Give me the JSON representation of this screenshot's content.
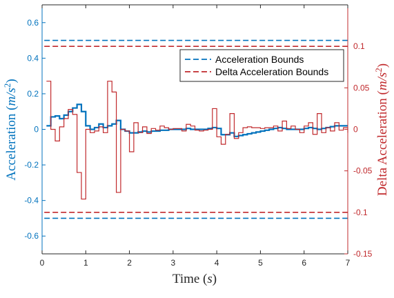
{
  "chart_data": {
    "type": "line",
    "xlabel": "Time (s)",
    "xlim": [
      0,
      7
    ],
    "x_ticks": [
      "0",
      "1",
      "2",
      "3",
      "4",
      "5",
      "6",
      "7"
    ],
    "ylabel_left": "Acceleration (m/s²)",
    "ylim_left": [
      -0.7,
      0.7
    ],
    "y_ticks_left": [
      "0.6",
      "0.4",
      "0.2",
      "0",
      "-0.2",
      "-0.4",
      "-0.6"
    ],
    "ylabel_right": "Delta Acceleration (m/s²)",
    "ylim_right": [
      -0.15,
      0.15
    ],
    "y_ticks_right": [
      "0.1",
      "0.05",
      "0",
      "-0.05",
      "-0.1",
      "-0.15"
    ],
    "colors": {
      "left": "#0072BD",
      "right": "#C0282B"
    },
    "legend": {
      "position": "top-right",
      "entries": [
        "Acceleration Bounds",
        "Delta Acceleration Bounds"
      ]
    },
    "series": [
      {
        "name": "Acceleration Bounds",
        "axis": "left",
        "style": "dashed",
        "color": "#0072BD",
        "values": [
          0.5,
          -0.5
        ]
      },
      {
        "name": "Delta Acceleration Bounds",
        "axis": "right",
        "style": "dashed",
        "color": "#C0282B",
        "values": [
          0.1,
          -0.1
        ]
      },
      {
        "name": "",
        "axis": "left",
        "style": "stairs",
        "color": "#0072BD",
        "x": [
          0.1,
          0.2,
          0.3,
          0.4,
          0.5,
          0.6,
          0.7,
          0.8,
          0.9,
          1.0,
          1.1,
          1.2,
          1.3,
          1.4,
          1.5,
          1.6,
          1.7,
          1.8,
          1.9,
          2.0,
          2.1,
          2.2,
          2.3,
          2.4,
          2.5,
          2.6,
          2.7,
          2.8,
          2.9,
          3.0,
          3.1,
          3.2,
          3.3,
          3.4,
          3.5,
          3.6,
          3.7,
          3.8,
          3.9,
          4.0,
          4.1,
          4.2,
          4.3,
          4.4,
          4.5,
          4.6,
          4.7,
          4.8,
          4.9,
          5.0,
          5.1,
          5.2,
          5.3,
          5.4,
          5.5,
          5.6,
          5.7,
          5.8,
          5.9,
          6.0,
          6.1,
          6.2,
          6.3,
          6.4,
          6.5,
          6.6,
          6.7,
          6.8,
          6.9,
          7.0
        ],
        "y": [
          0.02,
          0.07,
          0.075,
          0.06,
          0.08,
          0.1,
          0.12,
          0.14,
          0.1,
          0.02,
          0.0,
          0.01,
          0.03,
          0.01,
          0.02,
          0.03,
          0.05,
          0.0,
          -0.01,
          -0.02,
          -0.02,
          -0.015,
          -0.01,
          -0.015,
          -0.01,
          -0.01,
          -0.005,
          -0.005,
          0.0,
          0.0,
          0.0,
          0.0,
          0.005,
          0.0,
          0.0,
          0.0,
          0.0,
          0.005,
          0.01,
          0.005,
          -0.03,
          -0.03,
          -0.02,
          -0.04,
          -0.035,
          -0.03,
          -0.025,
          -0.02,
          -0.015,
          -0.01,
          -0.005,
          0.0,
          0.005,
          0.01,
          0.005,
          0.0,
          0.0,
          0.0,
          0.0,
          0.005,
          0.01,
          0.005,
          0.0,
          0.005,
          0.01,
          0.015,
          0.02,
          0.02,
          0.02,
          0.02
        ]
      },
      {
        "name": "",
        "axis": "right",
        "style": "stairs",
        "color": "#C0282B",
        "x": [
          0.1,
          0.2,
          0.3,
          0.4,
          0.5,
          0.6,
          0.7,
          0.8,
          0.9,
          1.0,
          1.1,
          1.2,
          1.3,
          1.4,
          1.5,
          1.6,
          1.7,
          1.8,
          1.9,
          2.0,
          2.1,
          2.2,
          2.3,
          2.4,
          2.5,
          2.6,
          2.7,
          2.8,
          2.9,
          3.0,
          3.1,
          3.2,
          3.3,
          3.4,
          3.5,
          3.6,
          3.7,
          3.8,
          3.9,
          4.0,
          4.1,
          4.2,
          4.3,
          4.4,
          4.5,
          4.6,
          4.7,
          4.8,
          4.9,
          5.0,
          5.1,
          5.2,
          5.3,
          5.4,
          5.5,
          5.6,
          5.7,
          5.8,
          5.9,
          6.0,
          6.1,
          6.2,
          6.3,
          6.4,
          6.5,
          6.6,
          6.7,
          6.8,
          6.9,
          7.0
        ],
        "y": [
          0.058,
          0.0,
          -0.014,
          0.003,
          0.013,
          0.024,
          0.018,
          -0.052,
          -0.084,
          0.0,
          -0.004,
          -0.002,
          0.003,
          -0.004,
          0.058,
          0.045,
          -0.076,
          0.0,
          -0.002,
          -0.027,
          0.008,
          -0.004,
          0.003,
          -0.005,
          0.001,
          -0.001,
          0.004,
          0.002,
          0.0,
          0.001,
          0.001,
          -0.002,
          0.006,
          0.004,
          -0.001,
          -0.002,
          -0.001,
          0.0,
          0.025,
          -0.009,
          -0.018,
          -0.006,
          0.019,
          -0.011,
          -0.004,
          0.002,
          0.003,
          0.002,
          0.002,
          0.001,
          0.002,
          0.002,
          0.004,
          -0.002,
          0.01,
          0.001,
          0.004,
          0.0,
          -0.004,
          0.004,
          0.008,
          -0.006,
          0.019,
          -0.004,
          0.002,
          -0.002,
          0.008,
          -0.001,
          0.002,
          -0.004
        ]
      }
    ]
  }
}
